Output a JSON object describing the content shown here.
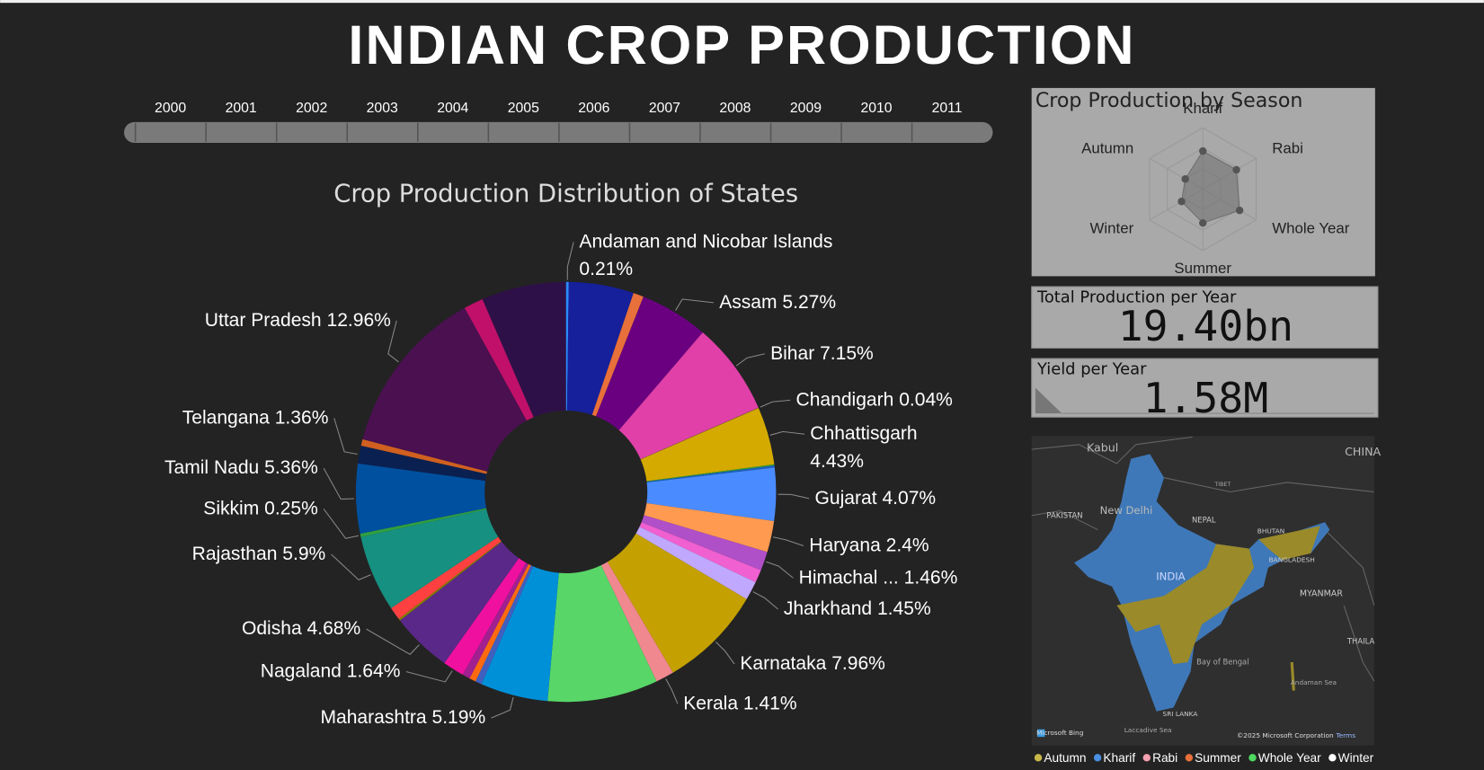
{
  "title": "INDIAN CROP PRODUCTION",
  "year_slicer": {
    "years": [
      2000,
      2001,
      2002,
      2003,
      2004,
      2005,
      2006,
      2007,
      2008,
      2009,
      2010,
      2011
    ]
  },
  "chart_data": [
    {
      "type": "donut",
      "title": "Crop Production Distribution of States",
      "categories": [
        "Andaman and Nicobar Islands",
        null,
        null,
        "Assam",
        "Bihar",
        "Chandigarh",
        "Chhattisgarh",
        null,
        null,
        "Gujarat",
        "Haryana",
        "Himachal ...",
        null,
        "Jharkhand",
        "Karnataka",
        "Kerala",
        null,
        "Maharashtra",
        null,
        null,
        null,
        "Nagaland",
        "Odisha",
        null,
        null,
        "Rajasthan",
        "Sikkim",
        "Tamil Nadu",
        "Telangana",
        null,
        "Uttar Pradesh",
        null,
        null
      ],
      "values": [
        0.21,
        5.0,
        0.8,
        5.27,
        7.15,
        0.04,
        4.43,
        0.1,
        0.15,
        4.07,
        2.4,
        1.46,
        1.0,
        1.45,
        7.96,
        1.41,
        8.5,
        5.19,
        0.5,
        0.5,
        0.6,
        1.64,
        4.68,
        0.15,
        1.0,
        5.9,
        0.25,
        5.36,
        1.36,
        0.5,
        12.96,
        1.5,
        6.51
      ],
      "value_labels": [
        "0.21%",
        null,
        null,
        "5.27%",
        "7.15%",
        "0.04%",
        "4.43%",
        null,
        null,
        "4.07%",
        "2.4%",
        "1.46%",
        null,
        "1.45%",
        "7.96%",
        "1.41%",
        null,
        "5.19%",
        null,
        null,
        null,
        "1.64%",
        "4.68%",
        null,
        null,
        "5.9%",
        "0.25%",
        "5.36%",
        "1.36%",
        null,
        "12.96%",
        null,
        null
      ],
      "colors": [
        "#2a8cff",
        "#16209a",
        "#e8703a",
        "#6a0080",
        "#e040a8",
        "#8a6a20",
        "#d4aa00",
        "#3aa030",
        "#1a60c0",
        "#4a8cff",
        "#ff9a50",
        "#b050c8",
        "#f060d0",
        "#c0a8ff",
        "#c4a000",
        "#f08890",
        "#58d668",
        "#0090d8",
        "#4060c0",
        "#ff6a10",
        "#a02090",
        "#f010a0",
        "#5a2888",
        "#808000",
        "#ff4040",
        "#169080",
        "#30a040",
        "#0050a0",
        "#0a2050",
        "#d06020",
        "#4a1050",
        "#c0106a",
        "#2e1048"
      ]
    },
    {
      "type": "radar",
      "title": "Crop Production by Season",
      "categories": [
        "Kharif",
        "Rabi",
        "Whole Year",
        "Summer",
        "Winter",
        "Autumn"
      ],
      "values": [
        0.62,
        0.63,
        0.69,
        0.55,
        0.4,
        0.33
      ],
      "rlim": [
        0,
        1
      ],
      "color": "#6e6e6e"
    }
  ],
  "cards": [
    {
      "title": "Total Production per Year",
      "value": "19.40bn"
    },
    {
      "title": "Yield per Year",
      "value": "1.58M"
    }
  ],
  "map": {
    "labels": [
      "Kabul",
      "New Delhi",
      "PAKISTAN",
      "NEPAL",
      "BHUTAN",
      "BANGLADESH",
      "INDIA",
      "MYANMAR",
      "TIBET",
      "CHINA",
      "Bay of Bengal",
      "SRI LANKA",
      "Laccadive Sea",
      "Andaman Sea",
      "THAILA",
      "Microsoft Bing",
      "©2025 Microsoft Corporation",
      "Terms"
    ],
    "legend": [
      {
        "name": "Autumn",
        "color": "#c8b84a"
      },
      {
        "name": "Kharif",
        "color": "#4a90e2"
      },
      {
        "name": "Rabi",
        "color": "#f4a0b0"
      },
      {
        "name": "Summer",
        "color": "#e8703a"
      },
      {
        "name": "Whole Year",
        "color": "#4ed860"
      },
      {
        "name": "Winter",
        "color": "#ffffff"
      }
    ]
  }
}
